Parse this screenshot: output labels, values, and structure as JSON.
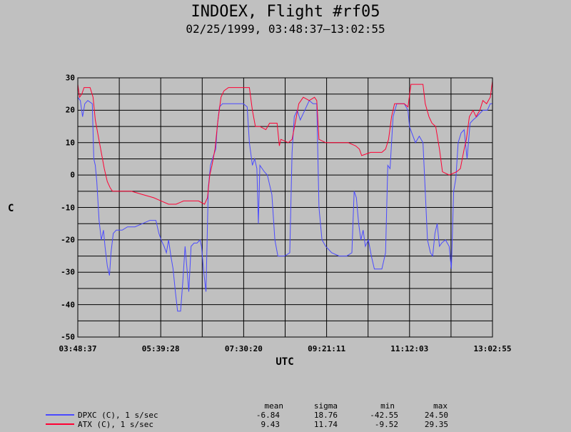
{
  "chart_data": {
    "type": "line",
    "title": "INDOEX, Flight #rf05",
    "subtitle": "02/25/1999, 03:48:37–13:02:55",
    "xlabel": "UTC",
    "ylabel": "C",
    "ylim": [
      -50,
      30
    ],
    "yticks": [
      "30",
      "20",
      "10",
      "0",
      "-10",
      "-20",
      "-30",
      "-40",
      "-50"
    ],
    "xticks": [
      "03:48:37",
      "05:39:28",
      "07:30:20",
      "09:21:11",
      "11:12:03",
      "13:02:55"
    ],
    "xlim": [
      "03:48:37",
      "13:02:55"
    ],
    "grid": true,
    "stats_headers": [
      "mean",
      "sigma",
      "min",
      "max"
    ],
    "series": [
      {
        "name": "DPXC (C), 1 s/sec",
        "color": "#4a4aff",
        "stats": [
          "-6.84",
          "18.76",
          "-42.55",
          "24.50"
        ],
        "points": [
          [
            "03:48:37",
            24
          ],
          [
            "03:52:00",
            23
          ],
          [
            "03:55:00",
            18
          ],
          [
            "03:58:00",
            22
          ],
          [
            "04:02:00",
            23
          ],
          [
            "04:08:00",
            22
          ],
          [
            "04:10:00",
            5
          ],
          [
            "04:12:00",
            3
          ],
          [
            "04:14:00",
            -2
          ],
          [
            "04:17:00",
            -14
          ],
          [
            "04:20:00",
            -20
          ],
          [
            "04:23:00",
            -17
          ],
          [
            "04:25:00",
            -22
          ],
          [
            "04:28:00",
            -28
          ],
          [
            "04:31:00",
            -31
          ],
          [
            "04:33:00",
            -24
          ],
          [
            "04:36:00",
            -18
          ],
          [
            "04:40:00",
            -17
          ],
          [
            "04:48:00",
            -17
          ],
          [
            "04:55:00",
            -16
          ],
          [
            "05:05:00",
            -16
          ],
          [
            "05:15:00",
            -15
          ],
          [
            "05:25:00",
            -14
          ],
          [
            "05:33:00",
            -14
          ],
          [
            "05:37:00",
            -18
          ],
          [
            "05:40:00",
            -20
          ],
          [
            "05:44:00",
            -22
          ],
          [
            "05:47:00",
            -24
          ],
          [
            "05:50:00",
            -20
          ],
          [
            "05:53:00",
            -25
          ],
          [
            "05:56:00",
            -29
          ],
          [
            "05:59:00",
            -36
          ],
          [
            "06:02:00",
            -42
          ],
          [
            "06:06:00",
            -42
          ],
          [
            "06:09:00",
            -33
          ],
          [
            "06:12:00",
            -22
          ],
          [
            "06:15:00",
            -30
          ],
          [
            "06:17:00",
            -36
          ],
          [
            "06:20:00",
            -22
          ],
          [
            "06:24:00",
            -21
          ],
          [
            "06:28:00",
            -21
          ],
          [
            "06:32:00",
            -20
          ],
          [
            "06:34:00",
            -22
          ],
          [
            "06:37:00",
            -30
          ],
          [
            "06:40:00",
            -36
          ],
          [
            "06:43:00",
            -4
          ],
          [
            "06:46:00",
            3
          ],
          [
            "06:50:00",
            6
          ],
          [
            "06:53:00",
            8
          ],
          [
            "06:55:00",
            15
          ],
          [
            "06:58:00",
            21
          ],
          [
            "07:02:00",
            22
          ],
          [
            "07:15:00",
            22
          ],
          [
            "07:30:00",
            22
          ],
          [
            "07:35:00",
            21
          ],
          [
            "07:38:00",
            10
          ],
          [
            "07:42:00",
            3
          ],
          [
            "07:45:00",
            5
          ],
          [
            "07:48:00",
            2
          ],
          [
            "07:50:00",
            -15
          ],
          [
            "07:52:00",
            3
          ],
          [
            "07:55:00",
            2
          ],
          [
            "07:58:00",
            1
          ],
          [
            "08:02:00",
            0
          ],
          [
            "08:05:00",
            -3
          ],
          [
            "08:08:00",
            -6
          ],
          [
            "08:12:00",
            -20
          ],
          [
            "08:16:00",
            -25
          ],
          [
            "08:25:00",
            -25
          ],
          [
            "08:32:00",
            -24
          ],
          [
            "08:35:00",
            7
          ],
          [
            "08:38:00",
            18
          ],
          [
            "08:42:00",
            20
          ],
          [
            "08:46:00",
            17
          ],
          [
            "08:50:00",
            19
          ],
          [
            "08:54:00",
            21
          ],
          [
            "08:58:00",
            23
          ],
          [
            "09:03:00",
            22
          ],
          [
            "09:08:00",
            22
          ],
          [
            "09:11:00",
            -10
          ],
          [
            "09:15:00",
            -20
          ],
          [
            "09:20:00",
            -22
          ],
          [
            "09:28:00",
            -24
          ],
          [
            "09:38:00",
            -25
          ],
          [
            "09:48:00",
            -25
          ],
          [
            "09:55:00",
            -24
          ],
          [
            "09:58:00",
            -5
          ],
          [
            "10:01:00",
            -7
          ],
          [
            "10:04:00",
            -15
          ],
          [
            "10:07:00",
            -20
          ],
          [
            "10:10:00",
            -17
          ],
          [
            "10:13:00",
            -22
          ],
          [
            "10:17:00",
            -20
          ],
          [
            "10:21:00",
            -25
          ],
          [
            "10:25:00",
            -29
          ],
          [
            "10:35:00",
            -29
          ],
          [
            "10:40:00",
            -24
          ],
          [
            "10:43:00",
            3
          ],
          [
            "10:46:00",
            2
          ],
          [
            "10:50:00",
            18
          ],
          [
            "10:55:00",
            22
          ],
          [
            "11:05:00",
            22
          ],
          [
            "11:10:00",
            20
          ],
          [
            "11:12:00",
            15
          ],
          [
            "11:15:00",
            13
          ],
          [
            "11:20:00",
            10
          ],
          [
            "11:25:00",
            12
          ],
          [
            "11:30:00",
            10
          ],
          [
            "11:33:00",
            -5
          ],
          [
            "11:36:00",
            -20
          ],
          [
            "11:40:00",
            -24
          ],
          [
            "11:43:00",
            -25
          ],
          [
            "11:46:00",
            -18
          ],
          [
            "11:49:00",
            -15
          ],
          [
            "11:52:00",
            -22
          ],
          [
            "11:55:00",
            -21
          ],
          [
            "12:00:00",
            -20
          ],
          [
            "12:05:00",
            -22
          ],
          [
            "12:08:00",
            -29
          ],
          [
            "12:11:00",
            -5
          ],
          [
            "12:14:00",
            -1
          ],
          [
            "12:17:00",
            10
          ],
          [
            "12:21:00",
            13
          ],
          [
            "12:25:00",
            14
          ],
          [
            "12:29:00",
            5
          ],
          [
            "12:33:00",
            16
          ],
          [
            "12:37:00",
            17
          ],
          [
            "12:42:00",
            18
          ],
          [
            "12:50:00",
            20
          ],
          [
            "12:56:00",
            20
          ],
          [
            "13:00:00",
            22
          ],
          [
            "13:02:55",
            22
          ]
        ]
      },
      {
        "name": "ATX (C), 1 s/sec",
        "color": "#ff0033",
        "stats": [
          "9.43",
          "11.74",
          "-9.52",
          "29.35"
        ],
        "points": [
          [
            "03:48:37",
            28
          ],
          [
            "03:51:00",
            24
          ],
          [
            "03:54:00",
            25
          ],
          [
            "03:57:00",
            27
          ],
          [
            "04:00:00",
            27
          ],
          [
            "04:05:00",
            27
          ],
          [
            "04:09:00",
            24
          ],
          [
            "04:12:00",
            17
          ],
          [
            "04:16:00",
            12
          ],
          [
            "04:20:00",
            7
          ],
          [
            "04:24:00",
            2
          ],
          [
            "04:28:00",
            -2
          ],
          [
            "04:32:00",
            -4
          ],
          [
            "04:35:00",
            -5
          ],
          [
            "04:45:00",
            -5
          ],
          [
            "05:00:00",
            -5
          ],
          [
            "05:15:00",
            -6
          ],
          [
            "05:30:00",
            -7
          ],
          [
            "05:40:00",
            -8
          ],
          [
            "05:50:00",
            -9
          ],
          [
            "06:00:00",
            -9
          ],
          [
            "06:10:00",
            -8
          ],
          [
            "06:20:00",
            -8
          ],
          [
            "06:30:00",
            -8
          ],
          [
            "06:38:00",
            -9
          ],
          [
            "06:42:00",
            -7
          ],
          [
            "06:45:00",
            0
          ],
          [
            "06:48:00",
            3
          ],
          [
            "06:52:00",
            8
          ],
          [
            "06:56:00",
            17
          ],
          [
            "07:00:00",
            24
          ],
          [
            "07:04:00",
            26
          ],
          [
            "07:10:00",
            27
          ],
          [
            "07:25:00",
            27
          ],
          [
            "07:38:00",
            27
          ],
          [
            "07:42:00",
            20
          ],
          [
            "07:46:00",
            15
          ],
          [
            "07:52:00",
            15
          ],
          [
            "08:00:00",
            14
          ],
          [
            "08:05:00",
            16
          ],
          [
            "08:15:00",
            16
          ],
          [
            "08:18:00",
            9
          ],
          [
            "08:20:00",
            11
          ],
          [
            "08:30:00",
            10
          ],
          [
            "08:35:00",
            11
          ],
          [
            "08:40:00",
            17
          ],
          [
            "08:44:00",
            22
          ],
          [
            "08:50:00",
            24
          ],
          [
            "08:58:00",
            23
          ],
          [
            "09:05:00",
            24
          ],
          [
            "09:08:00",
            23
          ],
          [
            "09:11:00",
            11
          ],
          [
            "09:20:00",
            10
          ],
          [
            "09:35:00",
            10
          ],
          [
            "09:50:00",
            10
          ],
          [
            "10:00:00",
            9
          ],
          [
            "10:05:00",
            8
          ],
          [
            "10:08:00",
            6
          ],
          [
            "10:20:00",
            7
          ],
          [
            "10:35:00",
            7
          ],
          [
            "10:40:00",
            8
          ],
          [
            "10:44:00",
            11
          ],
          [
            "10:48:00",
            18
          ],
          [
            "10:52:00",
            22
          ],
          [
            "10:58:00",
            22
          ],
          [
            "11:05:00",
            22
          ],
          [
            "11:10:00",
            21
          ],
          [
            "11:14:00",
            28
          ],
          [
            "11:30:00",
            28
          ],
          [
            "11:33:00",
            22
          ],
          [
            "11:38:00",
            18
          ],
          [
            "11:42:00",
            16
          ],
          [
            "11:47:00",
            15
          ],
          [
            "11:52:00",
            8
          ],
          [
            "11:56:00",
            1
          ],
          [
            "12:05:00",
            0
          ],
          [
            "12:15:00",
            1
          ],
          [
            "12:20:00",
            2
          ],
          [
            "12:25:00",
            8
          ],
          [
            "12:28:00",
            11
          ],
          [
            "12:32:00",
            18
          ],
          [
            "12:37:00",
            20
          ],
          [
            "12:41:00",
            18
          ],
          [
            "12:46:00",
            20
          ],
          [
            "12:50:00",
            23
          ],
          [
            "12:55:00",
            22
          ],
          [
            "13:00:00",
            24
          ],
          [
            "13:02:55",
            29
          ]
        ]
      }
    ]
  }
}
